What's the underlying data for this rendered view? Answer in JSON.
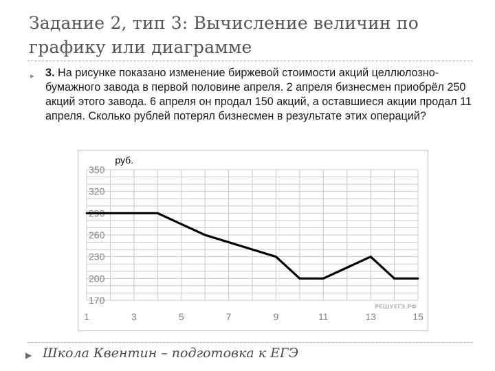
{
  "slide": {
    "title": "Задание 2, тип 3: Вычисление величин по графику или диаграмме",
    "problem_number": "3.",
    "problem_text": "На рисунке показано изменение биржевой стоимости акций целлюлозно-бумажного завода в первой половине апреля. 2 апреля бизнесмен приобрёл 250 акций этого завода. 6 апреля он продал 150 акций, а оставшиеся акции продал 11 апреля. Сколько рублей потерял бизнесмен в результате этих операций?",
    "footer": "Школа Квентин – подготовка к ЕГЭ",
    "watermark": "РЕШУЕГЭ.РФ"
  },
  "chart_data": {
    "type": "line",
    "ylabel": "руб.",
    "xlabel": "",
    "xlim": [
      1,
      15
    ],
    "ylim": [
      170,
      350
    ],
    "x_ticks": [
      1,
      3,
      5,
      7,
      9,
      11,
      13,
      15
    ],
    "y_ticks": [
      170,
      200,
      230,
      260,
      290,
      320,
      350
    ],
    "grid": true,
    "series": [
      {
        "x": [
          1,
          2,
          3,
          4,
          5,
          6,
          7,
          8,
          9,
          10,
          11,
          12,
          13,
          14,
          15
        ],
        "values": [
          290,
          290,
          290,
          290,
          275,
          260,
          250,
          240,
          230,
          200,
          200,
          215,
          230,
          200,
          200
        ],
        "color": "#000000"
      }
    ]
  }
}
